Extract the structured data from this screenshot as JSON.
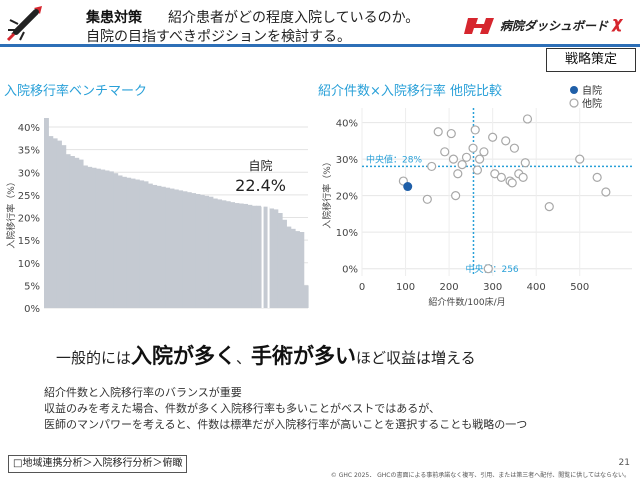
{
  "header": {
    "title": "集患対策",
    "subtitle_line1": "紹介患者がどの程度入院しているのか。",
    "subtitle_line2": "自院の目指すべきポジションを検討する。",
    "brand_name": "病院ダッシュボード",
    "brand_suffix": "χ",
    "brand_color": "#d6262e",
    "accent_color": "#2d6fb7"
  },
  "strategy_button": "戦略策定",
  "left_section_title": "入院移行率ベンチマーク",
  "right_section_title": "紹介件数×入院移行率 他院比較",
  "highlight": {
    "pre": "一般的には",
    "strong1": "入院が多く",
    "mid": "、",
    "strong2": "手術が多い",
    "post": "ほど収益は増える"
  },
  "notes": [
    "紹介件数と入院移行率のバランスが重要",
    "収益のみを考えた場合、件数が多く入院移行率も多いことがベストではあるが、",
    "医師のマンパワーを考えると、件数は標準だが入院移行率が高いことを選択することも戦略の一つ"
  ],
  "breadcrumb": "□地域連携分析＞入院移行分析＞俯瞰",
  "page_number": "21",
  "copyright": "© GHC 2025． GHCの書面による事前承諾なく複写、引用、または第三者へ配付、閲覧に供してはならない。",
  "chart_data": [
    {
      "type": "area",
      "title": "入院移行率ベンチマーク",
      "ylabel": "入院移行率（%）",
      "yticks": [
        "40%",
        "35%",
        "30%",
        "25%",
        "20%",
        "15%",
        "10%",
        "5%",
        "0%"
      ],
      "ylim": [
        0,
        42
      ],
      "grid": true,
      "color": "#c5cad2",
      "values": [
        42,
        38,
        37.5,
        37,
        36,
        34,
        33.6,
        33.2,
        32.8,
        31.5,
        31.2,
        31,
        30.8,
        30.6,
        30.4,
        30.2,
        29.8,
        29.3,
        29,
        28.8,
        28.6,
        28.4,
        28.2,
        28,
        27.5,
        27.2,
        27,
        26.8,
        26.6,
        26.4,
        26.2,
        26,
        25.8,
        25.6,
        25.4,
        25.2,
        25,
        24.8,
        24.6,
        24.2,
        24,
        23.8,
        23.6,
        23.4,
        23.2,
        23.1,
        23,
        22.8,
        22.6,
        22.6,
        22.4,
        22.4,
        22,
        21.8,
        21,
        19.5,
        18,
        17.5,
        17,
        16.8,
        5
      ],
      "highlight_index": 50,
      "highlight_label_name": "自院",
      "highlight_label_value": "22.4%"
    },
    {
      "type": "scatter",
      "title": "紹介件数×入院移行率 他院比較",
      "xlabel": "紹介件数/100床/月",
      "ylabel": "入院移行率（%）",
      "xlim": [
        0,
        620
      ],
      "ylim": [
        -2,
        44
      ],
      "xticks": [
        0,
        100,
        200,
        300,
        400,
        500
      ],
      "yticks": [
        "0%",
        "10%",
        "20%",
        "30%",
        "40%"
      ],
      "median_x": 256,
      "median_y": 28,
      "median_x_label": "中央値：256",
      "median_y_label": "中央値：28%",
      "median_color": "#29a0d8",
      "legend": [
        "自院",
        "他院"
      ],
      "legend_position": "top-right",
      "self_point": {
        "x": 105,
        "y": 22.5,
        "color": "#1f5fa8"
      },
      "others": [
        {
          "x": 95,
          "y": 24
        },
        {
          "x": 150,
          "y": 19
        },
        {
          "x": 175,
          "y": 37.5
        },
        {
          "x": 190,
          "y": 32
        },
        {
          "x": 160,
          "y": 28
        },
        {
          "x": 205,
          "y": 37
        },
        {
          "x": 210,
          "y": 30
        },
        {
          "x": 220,
          "y": 26
        },
        {
          "x": 230,
          "y": 28.5
        },
        {
          "x": 240,
          "y": 30.5
        },
        {
          "x": 255,
          "y": 33
        },
        {
          "x": 260,
          "y": 38
        },
        {
          "x": 270,
          "y": 30
        },
        {
          "x": 280,
          "y": 32
        },
        {
          "x": 265,
          "y": 27
        },
        {
          "x": 300,
          "y": 36
        },
        {
          "x": 305,
          "y": 26
        },
        {
          "x": 320,
          "y": 25
        },
        {
          "x": 330,
          "y": 35
        },
        {
          "x": 340,
          "y": 24
        },
        {
          "x": 345,
          "y": 23.5
        },
        {
          "x": 350,
          "y": 33
        },
        {
          "x": 360,
          "y": 26
        },
        {
          "x": 370,
          "y": 25
        },
        {
          "x": 375,
          "y": 29
        },
        {
          "x": 380,
          "y": 41
        },
        {
          "x": 430,
          "y": 17
        },
        {
          "x": 500,
          "y": 30
        },
        {
          "x": 540,
          "y": 25
        },
        {
          "x": 560,
          "y": 21
        },
        {
          "x": 290,
          "y": 0
        },
        {
          "x": 215,
          "y": 20
        }
      ]
    }
  ]
}
